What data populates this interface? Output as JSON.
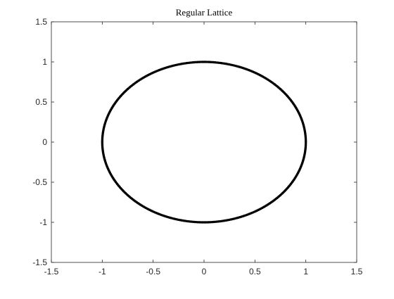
{
  "chart_data": {
    "type": "scatter",
    "title": "Regular Lattice",
    "xlabel": "",
    "ylabel": "",
    "xlim": [
      -1.5,
      1.5
    ],
    "ylim": [
      -1.5,
      1.5
    ],
    "xticks": [
      -1.5,
      -1,
      -0.5,
      0,
      0.5,
      1,
      1.5
    ],
    "yticks": [
      -1.5,
      -1,
      -0.5,
      0,
      0.5,
      1,
      1.5
    ],
    "xtick_labels": [
      "-1.5",
      "-1",
      "-0.5",
      "0",
      "0.5",
      "1",
      "1.5"
    ],
    "ytick_labels": [
      "-1.5",
      "-1",
      "-0.5",
      "0",
      "0.5",
      "1",
      "1.5"
    ],
    "grid": false,
    "legend": "none",
    "series": [
      {
        "shape": "unit circle",
        "center": [
          0,
          0
        ],
        "radius": 1,
        "point_count": 400,
        "color": "#000000",
        "line_color": "#1f5f8f"
      }
    ]
  }
}
